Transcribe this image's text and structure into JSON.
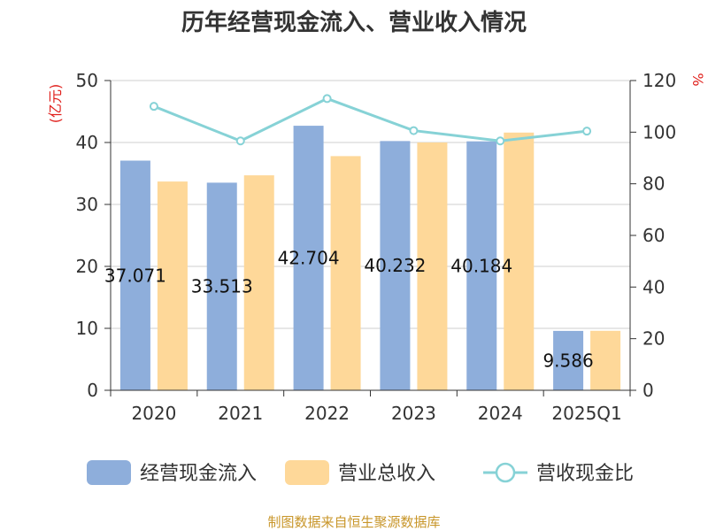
{
  "chart_data": {
    "type": "bar",
    "title": "历年经营现金流入、营业收入情况",
    "categories": [
      "2020",
      "2021",
      "2022",
      "2023",
      "2024",
      "2025Q1"
    ],
    "series": [
      {
        "name": "经营现金流入",
        "type": "bar",
        "axis": "left",
        "color": "#8eaedb",
        "values": [
          37.071,
          33.513,
          42.704,
          40.232,
          40.184,
          9.586
        ],
        "labels": [
          "37.071",
          "33.513",
          "42.704",
          "40.232",
          "40.184",
          "9.586"
        ]
      },
      {
        "name": "营业总收入",
        "type": "bar",
        "axis": "left",
        "color": "#fed899",
        "values": [
          33.7,
          34.7,
          37.8,
          40.0,
          41.6,
          9.6
        ]
      },
      {
        "name": "营收现金比",
        "type": "line",
        "axis": "right",
        "color": "#86d2d6",
        "values": [
          110,
          96.6,
          113,
          100.6,
          96.6,
          100.4
        ]
      }
    ],
    "y_left": {
      "unit": "(亿元)",
      "min": 0,
      "max": 50,
      "ticks": [
        0,
        10,
        20,
        30,
        40,
        50
      ],
      "tick_labels": [
        "0",
        "10",
        "20",
        "30",
        "40",
        "50"
      ]
    },
    "y_right": {
      "unit": "%",
      "min": 0,
      "max": 120,
      "ticks": [
        0,
        20,
        40,
        60,
        80,
        100,
        120
      ],
      "tick_labels": [
        "0",
        "20",
        "40",
        "60",
        "80",
        "100",
        "120"
      ]
    },
    "grid": true,
    "legend_position": "bottom",
    "source": "制图数据来自恒生聚源数据库"
  }
}
